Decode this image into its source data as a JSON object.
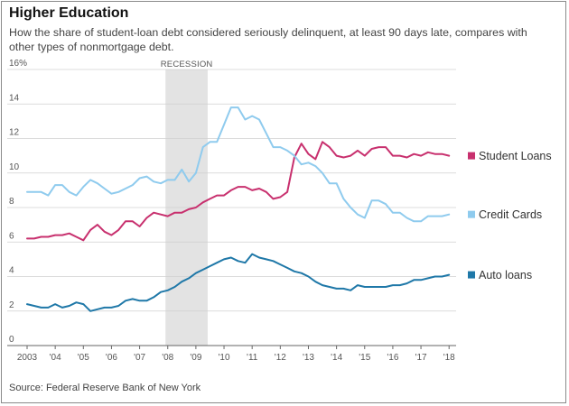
{
  "title": "Higher Education",
  "subtitle": "How the share of student-loan debt considered seriously delinquent, at least 90 days late, compares with other types of nonmortgage debt.",
  "source": "Source: Federal Reserve Bank of New York",
  "colors": {
    "student_loans": "#c8306e",
    "credit_cards": "#8fcbee",
    "auto_loans": "#1f78a8",
    "recession_band": "#e3e3e3",
    "grid": "#d0d0d0"
  },
  "chart_data": {
    "type": "line",
    "title": "",
    "xlabel": "",
    "ylabel": "",
    "unit": "%",
    "xlim": [
      2003.0,
      2018.25
    ],
    "ylim": [
      0,
      16
    ],
    "y_ticks": [
      {
        "value": 0,
        "label": "0"
      },
      {
        "value": 2,
        "label": "2"
      },
      {
        "value": 4,
        "label": "4"
      },
      {
        "value": 6,
        "label": "6"
      },
      {
        "value": 8,
        "label": "8"
      },
      {
        "value": 10,
        "label": "10"
      },
      {
        "value": 12,
        "label": "12"
      },
      {
        "value": 14,
        "label": "14"
      },
      {
        "value": 16,
        "label": "16%"
      }
    ],
    "x_ticks": [
      {
        "value": 2003,
        "label": "2003"
      },
      {
        "value": 2004,
        "label": "'04"
      },
      {
        "value": 2005,
        "label": "'05"
      },
      {
        "value": 2006,
        "label": "'06"
      },
      {
        "value": 2007,
        "label": "'07"
      },
      {
        "value": 2008,
        "label": "'08"
      },
      {
        "value": 2009,
        "label": "'09"
      },
      {
        "value": 2010,
        "label": "'10"
      },
      {
        "value": 2011,
        "label": "'11"
      },
      {
        "value": 2012,
        "label": "'12"
      },
      {
        "value": 2013,
        "label": "'13"
      },
      {
        "value": 2014,
        "label": "'14"
      },
      {
        "value": 2015,
        "label": "'15"
      },
      {
        "value": 2016,
        "label": "'16"
      },
      {
        "value": 2017,
        "label": "'17"
      },
      {
        "value": 2018,
        "label": "'18"
      }
    ],
    "grid": true,
    "recession": {
      "label": "RECESSION",
      "start": 2007.92,
      "end": 2009.42
    },
    "x": [
      2003.0,
      2003.25,
      2003.5,
      2003.75,
      2004.0,
      2004.25,
      2004.5,
      2004.75,
      2005.0,
      2005.25,
      2005.5,
      2005.75,
      2006.0,
      2006.25,
      2006.5,
      2006.75,
      2007.0,
      2007.25,
      2007.5,
      2007.75,
      2008.0,
      2008.25,
      2008.5,
      2008.75,
      2009.0,
      2009.25,
      2009.5,
      2009.75,
      2010.0,
      2010.25,
      2010.5,
      2010.75,
      2011.0,
      2011.25,
      2011.5,
      2011.75,
      2012.0,
      2012.25,
      2012.5,
      2012.75,
      2013.0,
      2013.25,
      2013.5,
      2013.75,
      2014.0,
      2014.25,
      2014.5,
      2014.75,
      2015.0,
      2015.25,
      2015.5,
      2015.75,
      2016.0,
      2016.25,
      2016.5,
      2016.75,
      2017.0,
      2017.25,
      2017.5,
      2017.75,
      2018.0
    ],
    "series": [
      {
        "name": "Student Loans",
        "color": "#c8306e",
        "values": [
          6.2,
          6.2,
          6.3,
          6.3,
          6.4,
          6.4,
          6.5,
          6.3,
          6.1,
          6.7,
          7.0,
          6.6,
          6.4,
          6.7,
          7.2,
          7.2,
          6.9,
          7.4,
          7.7,
          7.6,
          7.5,
          7.7,
          7.7,
          7.9,
          8.0,
          8.3,
          8.5,
          8.7,
          8.7,
          9.0,
          9.2,
          9.2,
          9.0,
          9.1,
          8.9,
          8.5,
          8.6,
          8.9,
          10.9,
          11.7,
          11.1,
          10.8,
          11.8,
          11.5,
          11.0,
          10.9,
          11.0,
          11.3,
          11.0,
          11.4,
          11.5,
          11.5,
          11.0,
          11.0,
          10.9,
          11.1,
          11.0,
          11.2,
          11.1,
          11.1,
          11.0
        ]
      },
      {
        "name": "Credit Cards",
        "color": "#8fcbee",
        "values": [
          8.9,
          8.9,
          8.9,
          8.7,
          9.3,
          9.3,
          8.9,
          8.7,
          9.2,
          9.6,
          9.4,
          9.1,
          8.8,
          8.9,
          9.1,
          9.3,
          9.7,
          9.8,
          9.5,
          9.4,
          9.6,
          9.6,
          10.2,
          9.5,
          10.0,
          11.5,
          11.8,
          11.8,
          12.8,
          13.8,
          13.8,
          13.1,
          13.3,
          13.1,
          12.3,
          11.5,
          11.5,
          11.3,
          11.0,
          10.5,
          10.6,
          10.4,
          10.0,
          9.4,
          9.4,
          8.5,
          8.0,
          7.6,
          7.4,
          8.4,
          8.4,
          8.2,
          7.7,
          7.7,
          7.4,
          7.2,
          7.2,
          7.5,
          7.5,
          7.5,
          7.6
        ]
      },
      {
        "name": "Auto loans",
        "color": "#1f78a8",
        "values": [
          2.4,
          2.3,
          2.2,
          2.2,
          2.4,
          2.2,
          2.3,
          2.5,
          2.4,
          2.0,
          2.1,
          2.2,
          2.2,
          2.3,
          2.6,
          2.7,
          2.6,
          2.6,
          2.8,
          3.1,
          3.2,
          3.4,
          3.7,
          3.9,
          4.2,
          4.4,
          4.6,
          4.8,
          5.0,
          5.1,
          4.9,
          4.8,
          5.3,
          5.1,
          5.0,
          4.9,
          4.7,
          4.5,
          4.3,
          4.2,
          4.0,
          3.7,
          3.5,
          3.4,
          3.3,
          3.3,
          3.2,
          3.5,
          3.4,
          3.4,
          3.4,
          3.4,
          3.5,
          3.5,
          3.6,
          3.8,
          3.8,
          3.9,
          4.0,
          4.0,
          4.1
        ]
      }
    ],
    "legend": {
      "placement": "right",
      "entries": [
        "Student Loans",
        "Credit Cards",
        "Auto loans"
      ]
    }
  }
}
